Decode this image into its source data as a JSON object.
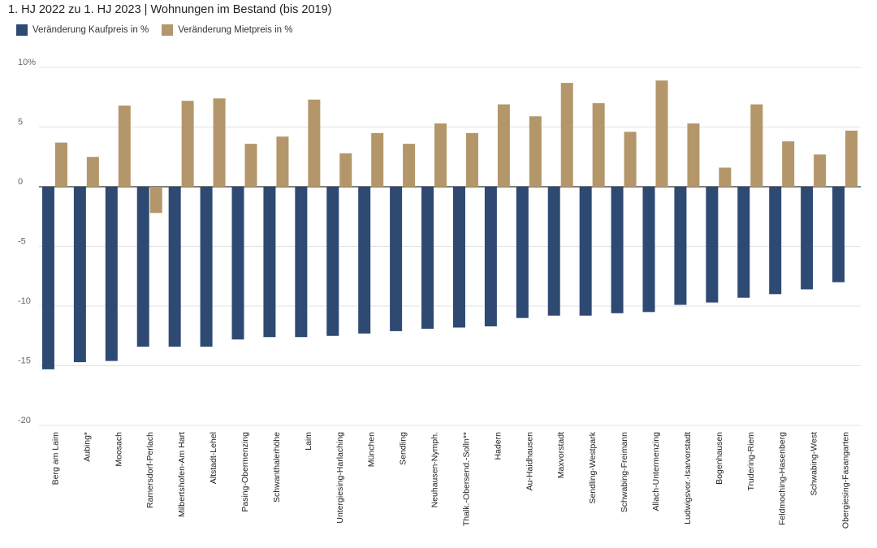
{
  "title": "1. HJ 2022 zu 1. HJ 2023 | Wohnungen im Bestand (bis 2019)",
  "legend": [
    {
      "name": "Veränderung Kaufpreis in %",
      "color": "#2e4a73"
    },
    {
      "name": "Veränderung Mietpreis in %",
      "color": "#b3976a"
    }
  ],
  "chart_data": {
    "type": "bar",
    "title": "1. HJ 2022 zu 1. HJ 2023 | Wohnungen im Bestand (bis 2019)",
    "xlabel": "",
    "ylabel": "",
    "ylim": [
      -20,
      10
    ],
    "yticks": [
      {
        "value": 10,
        "label": "10%"
      },
      {
        "value": 5,
        "label": "5"
      },
      {
        "value": 0,
        "label": "0"
      },
      {
        "value": -5,
        "label": "-5"
      },
      {
        "value": -10,
        "label": "-10"
      },
      {
        "value": -15,
        "label": "-15"
      },
      {
        "value": -20,
        "label": "-20"
      }
    ],
    "grid": true,
    "legend_position": "top-left",
    "categories": [
      "Berg am Laim",
      "Aubing*",
      "Moosach",
      "Ramersdorf-Perlach",
      "Milbertshofen-Am Hart",
      "Altstadt-Lehel",
      "Pasing-Obermenzing",
      "Schwanthalerhöhe",
      "Laim",
      "Untergiesing-Harlaching",
      "München",
      "Sendling",
      "Neuhausen-Nymph.",
      "Thalk.-Obersend.-Solln**",
      "Hadern",
      "Au-Haidhausen",
      "Maxvorstadt",
      "Sendling-Westpark",
      "Schwabing-Freimann",
      "Allach-Untermenzing",
      "Ludwigsvor.-Isarvorstadt",
      "Bogenhausen",
      "Trudering-Riem",
      "Feldmoching-Hasenberg",
      "Schwabing-West",
      "Obergiesing-Fasangarten"
    ],
    "series": [
      {
        "name": "Veränderung Kaufpreis in %",
        "color": "#2e4a73",
        "values": [
          -15.3,
          -14.7,
          -14.6,
          -13.4,
          -13.4,
          -13.4,
          -12.8,
          -12.6,
          -12.6,
          -12.5,
          -12.3,
          -12.1,
          -11.9,
          -11.8,
          -11.7,
          -11.0,
          -10.8,
          -10.8,
          -10.6,
          -10.5,
          -9.9,
          -9.7,
          -9.3,
          -9.0,
          -8.6,
          -8.0
        ]
      },
      {
        "name": "Veränderung Mietpreis in %",
        "color": "#b3976a",
        "values": [
          3.7,
          2.5,
          6.8,
          -2.2,
          7.2,
          7.4,
          3.6,
          4.2,
          7.3,
          2.8,
          4.5,
          3.6,
          5.3,
          4.5,
          6.9,
          5.9,
          8.7,
          7.0,
          4.6,
          8.9,
          5.3,
          1.6,
          6.9,
          3.8,
          2.7,
          4.7
        ]
      }
    ]
  }
}
